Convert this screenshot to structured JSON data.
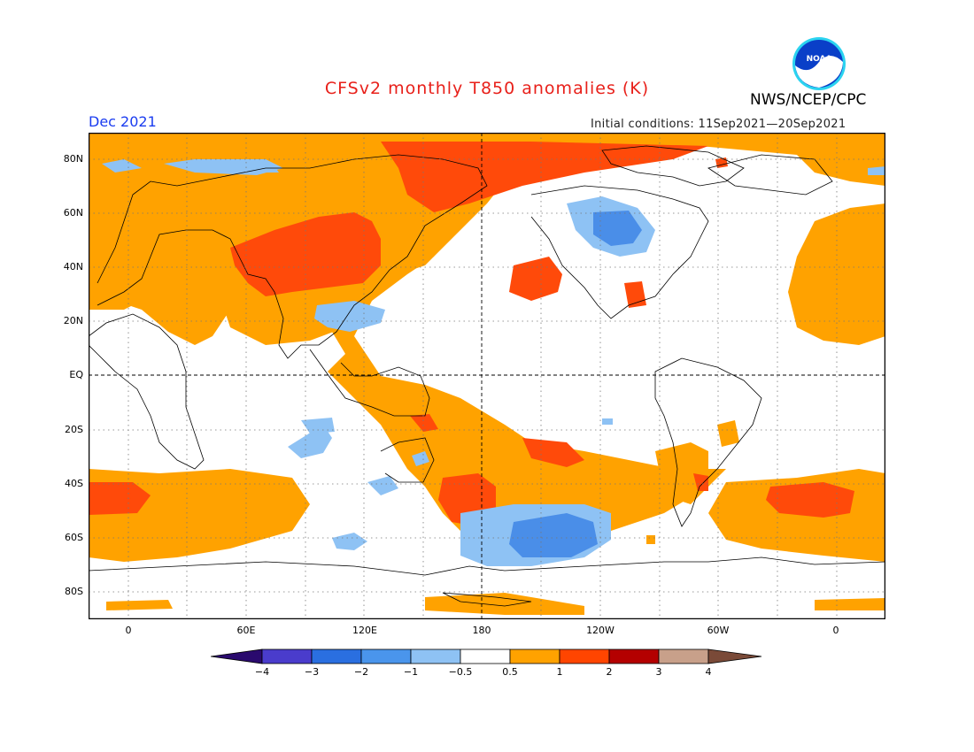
{
  "title": "CFSv2 monthly T850 anomalies (K)",
  "agency": "NWS/NCEP/CPC",
  "logo_text": "NOAA",
  "month": "Dec 2021",
  "initial_conditions": "Initial conditions: 11Sep2021—20Sep2021",
  "lat_labels": [
    "80N",
    "60N",
    "40N",
    "20N",
    "EQ",
    "20S",
    "40S",
    "60S",
    "80S"
  ],
  "lon_labels": [
    "0",
    "60E",
    "120E",
    "180",
    "120W",
    "60W",
    "0"
  ],
  "colorbar": {
    "labels": [
      "−4",
      "−3",
      "−2",
      "−1",
      "−0.5",
      "0.5",
      "1",
      "2",
      "3",
      "4"
    ],
    "colors": [
      "#2a0a6e",
      "#4a3ccc",
      "#2a6fe0",
      "#4a95ec",
      "#8ec2f4",
      "#ffffff",
      "#ffa200",
      "#ff4500",
      "#b40000",
      "#c8a08a",
      "#7a4a38"
    ]
  },
  "colors": {
    "title": "#e8201a",
    "month": "#1a3cf0",
    "warm1": "#ffa200",
    "warm2": "#ff4a0a",
    "cool1": "#8ec2f4",
    "cool2": "#4a8ee8"
  }
}
